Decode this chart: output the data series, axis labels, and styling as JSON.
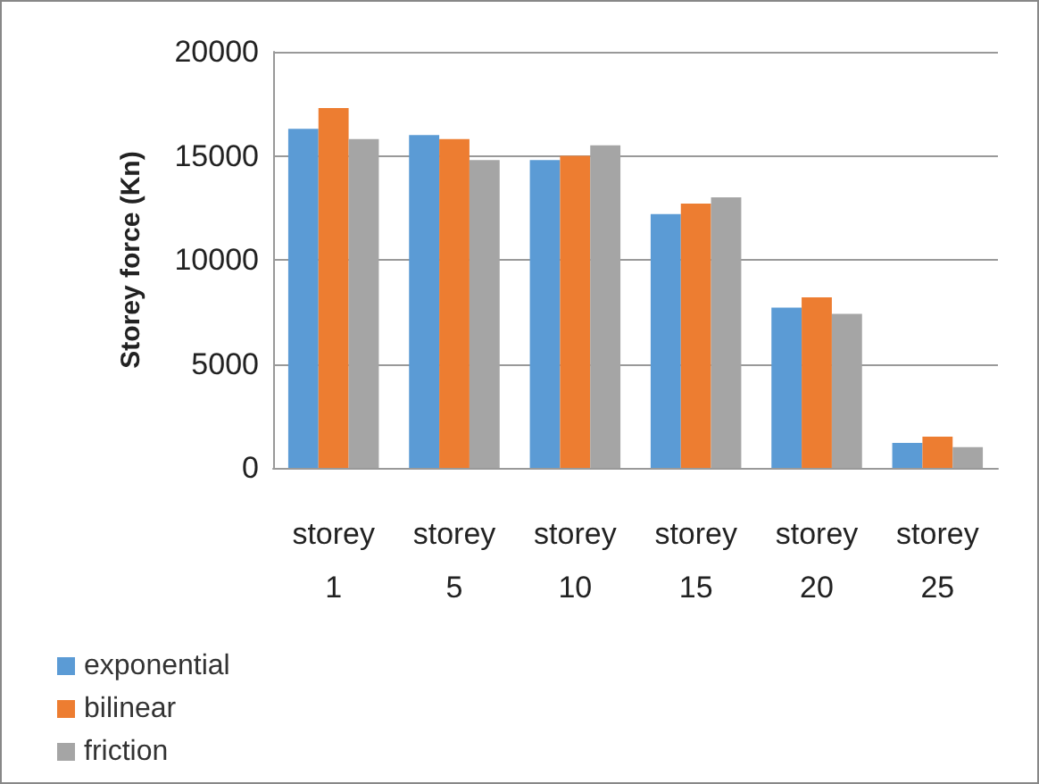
{
  "chart_data": {
    "type": "bar",
    "ylabel": "Storey force (Kn)",
    "categories": [
      "storey 1",
      "storey 5",
      "storey 10",
      "storey 15",
      "storey 20",
      "storey 25"
    ],
    "series": [
      {
        "name": "exponential",
        "color": "#5b9bd5",
        "values": [
          16300,
          16000,
          14800,
          12200,
          7700,
          1200
        ]
      },
      {
        "name": "bilinear",
        "color": "#ed7d31",
        "values": [
          17300,
          15800,
          15000,
          12700,
          8200,
          1500
        ]
      },
      {
        "name": "friction",
        "color": "#a5a5a5",
        "values": [
          15800,
          14800,
          15500,
          13000,
          7400,
          1000
        ]
      }
    ],
    "ylim": [
      0,
      20000
    ],
    "yticks": [
      0,
      5000,
      10000,
      15000,
      20000
    ],
    "grid": "y",
    "legend": "bottom left"
  }
}
